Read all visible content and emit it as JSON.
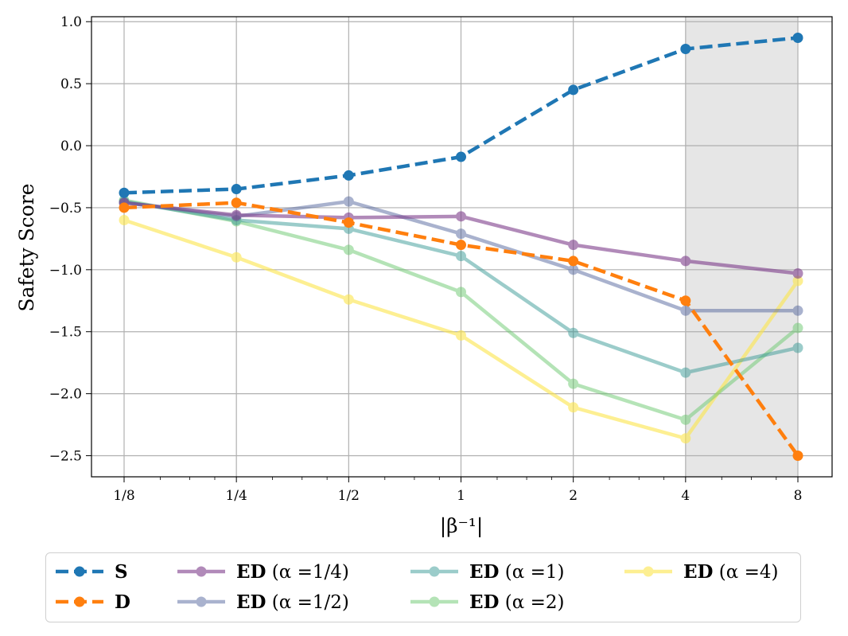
{
  "chart_data": {
    "type": "line",
    "title": "",
    "xlabel": "|β⁻¹|",
    "ylabel": "Safety Score",
    "x_scale": "log2",
    "categories": [
      "1/8",
      "1/4",
      "1/2",
      "1",
      "2",
      "4",
      "8"
    ],
    "x": [
      0.125,
      0.25,
      0.5,
      1,
      2,
      4,
      8
    ],
    "ylim": [
      -2.67,
      1.04
    ],
    "yticks": [
      1.0,
      0.5,
      0.0,
      -0.5,
      -1.0,
      -1.5,
      -2.0,
      -2.5
    ],
    "ytick_labels": [
      "1.0",
      "0.5",
      "0.0",
      "−0.5",
      "−1.0",
      "−1.5",
      "−2.0",
      "−2.5"
    ],
    "grid": true,
    "shaded_region": {
      "x_from": 4,
      "x_to": 8,
      "color": "#e6e6e6"
    },
    "legend_position": "below",
    "series": [
      {
        "name": "S",
        "bold": "S",
        "rest": "",
        "color": "#1f77b4",
        "dashed": true,
        "alpha": 1.0,
        "width": 4.5,
        "values": [
          -0.38,
          -0.35,
          -0.24,
          -0.09,
          0.45,
          0.78,
          0.87
        ]
      },
      {
        "name": "D",
        "bold": "D",
        "rest": "",
        "color": "#ff7f0e",
        "dashed": true,
        "alpha": 1.0,
        "width": 4.5,
        "values": [
          -0.5,
          -0.46,
          -0.62,
          -0.8,
          -0.93,
          -1.25,
          -2.5
        ]
      },
      {
        "name": "ED (α =1/4)",
        "bold": "ED",
        "rest": " (α =1/4)",
        "color": "#7e3e8c",
        "dashed": false,
        "alpha": 0.6,
        "width": 4.5,
        "values": [
          -0.46,
          -0.56,
          -0.58,
          -0.57,
          -0.8,
          -0.93,
          -1.03
        ]
      },
      {
        "name": "ED (α =1/2)",
        "bold": "ED",
        "rest": " (α =1/2)",
        "color": "#56689e",
        "dashed": false,
        "alpha": 0.5,
        "width": 4.5,
        "values": [
          -0.46,
          -0.57,
          -0.45,
          -0.71,
          -1.0,
          -1.33,
          -1.33
        ]
      },
      {
        "name": "ED (α =1)",
        "bold": "ED",
        "rest": " (α =1)",
        "color": "#3a9a96",
        "dashed": false,
        "alpha": 0.5,
        "width": 4.5,
        "values": [
          -0.45,
          -0.6,
          -0.67,
          -0.89,
          -1.51,
          -1.83,
          -1.63
        ]
      },
      {
        "name": "ED (α =2)",
        "bold": "ED",
        "rest": " (α =2)",
        "color": "#6cc96f",
        "dashed": false,
        "alpha": 0.5,
        "width": 4.5,
        "values": [
          -0.44,
          -0.61,
          -0.84,
          -1.18,
          -1.92,
          -2.21,
          -1.47
        ]
      },
      {
        "name": "ED (α =4)",
        "bold": "ED",
        "rest": " (α =4)",
        "color": "#fde64a",
        "dashed": false,
        "alpha": 0.6,
        "width": 4.5,
        "values": [
          -0.6,
          -0.9,
          -1.24,
          -1.53,
          -2.11,
          -2.36,
          -1.09
        ]
      }
    ]
  }
}
